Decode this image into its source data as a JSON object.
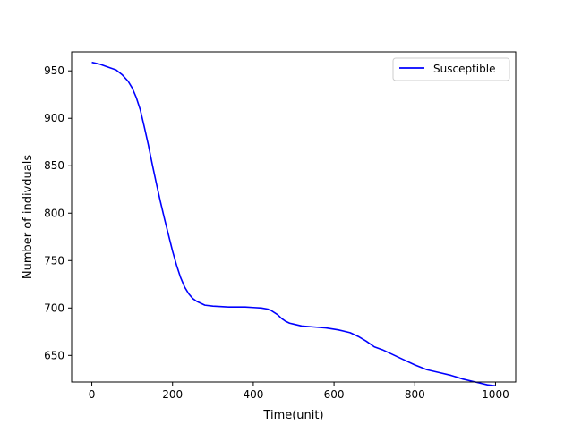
{
  "chart_data": {
    "type": "line",
    "title": "",
    "xlabel": "Time(unit)",
    "ylabel": "Number of indivduals",
    "xlim": [
      -50,
      1050
    ],
    "ylim": [
      622,
      970
    ],
    "xticks": [
      0,
      200,
      400,
      600,
      800,
      1000
    ],
    "yticks": [
      650,
      700,
      750,
      800,
      850,
      900,
      950
    ],
    "grid": false,
    "legend_position": "top-right",
    "series": [
      {
        "name": "Susceptible",
        "color": "#0000ff",
        "x": [
          0,
          20,
          40,
          60,
          75,
          90,
          100,
          110,
          120,
          130,
          140,
          150,
          160,
          170,
          180,
          190,
          200,
          210,
          220,
          230,
          240,
          250,
          260,
          270,
          280,
          300,
          320,
          340,
          360,
          380,
          400,
          420,
          440,
          460,
          470,
          480,
          490,
          500,
          520,
          550,
          580,
          610,
          640,
          660,
          680,
          700,
          720,
          740,
          770,
          800,
          830,
          860,
          890,
          920,
          950,
          980,
          1000
        ],
        "y": [
          959,
          957,
          954,
          951,
          946,
          939,
          932,
          922,
          909,
          891,
          872,
          851,
          831,
          812,
          794,
          777,
          760,
          745,
          732,
          722,
          715,
          710,
          707,
          705,
          703,
          702,
          701.5,
          701,
          701,
          701,
          700.5,
          700,
          698.5,
          693,
          689,
          686,
          684,
          683,
          681,
          680,
          679,
          677,
          674,
          670,
          665,
          659,
          656,
          652,
          646,
          640,
          635,
          632,
          629,
          625,
          622,
          619,
          618
        ]
      }
    ]
  }
}
